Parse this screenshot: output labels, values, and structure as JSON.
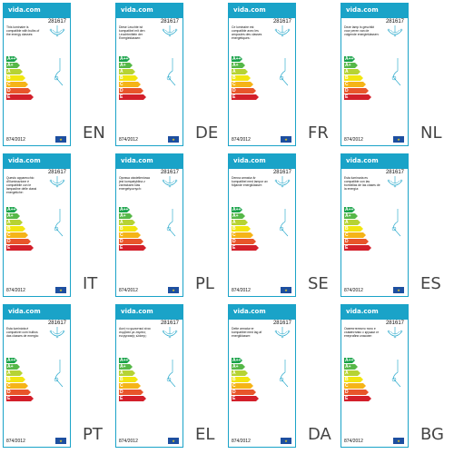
{
  "common": {
    "brand": "vida",
    "brand_suffix": ".com",
    "sku": "281617",
    "regulation": "874/2012",
    "eu_flag_symbol": "★",
    "colors": {
      "accent": "#1aa3c8",
      "class_colors": [
        "#1aa34a",
        "#56b848",
        "#b6d334",
        "#f2e610",
        "#f5b418",
        "#e8552a",
        "#d31f2a"
      ]
    },
    "energy_classes": [
      "A++",
      "A+",
      "A",
      "B",
      "C",
      "D",
      "E"
    ]
  },
  "labels": [
    {
      "lang": "EN",
      "text": "This luminaire is compatible with bulbs of the energy classes:"
    },
    {
      "lang": "DE",
      "text": "Diese Leuchte ist kompatibel mit den Leuchtmitteln der Energieklassen:"
    },
    {
      "lang": "FR",
      "text": "Ce luminaire est compatible avec les ampoules des classes énergétiques:"
    },
    {
      "lang": "NL",
      "text": "Deze lamp is geschikt voor peren van de volgende energieklassen:"
    },
    {
      "lang": "IT",
      "text": "Questo apparecchio d'illuminazione è compatibile con le lampadine delle classi energetiche:"
    },
    {
      "lang": "PL",
      "text": "Oprawa oświetleniowa jest kompatybilna z żarówkami klas energetycznych:"
    },
    {
      "lang": "SE",
      "text": "Denna armatur är kompatibel med lampor av följande energiklasser:"
    },
    {
      "lang": "ES",
      "text": "Esta luminaria es compatible con las bombillas de las clases de la energía:"
    },
    {
      "lang": "PT",
      "text": "Esta luminária é compatível com bulbos das classes de energia:"
    },
    {
      "lang": "EL",
      "text": "Αυτό το φωτιστικό είναι συμβατό με λάμπες ενεργειακής κλάσης:"
    },
    {
      "lang": "DA",
      "text": "Dette armatur er kompatibel med lag af energiklasser:"
    },
    {
      "lang": "BG",
      "text": "Осветителното тяло е съвместимо с крушки от енергийни класове:"
    }
  ]
}
